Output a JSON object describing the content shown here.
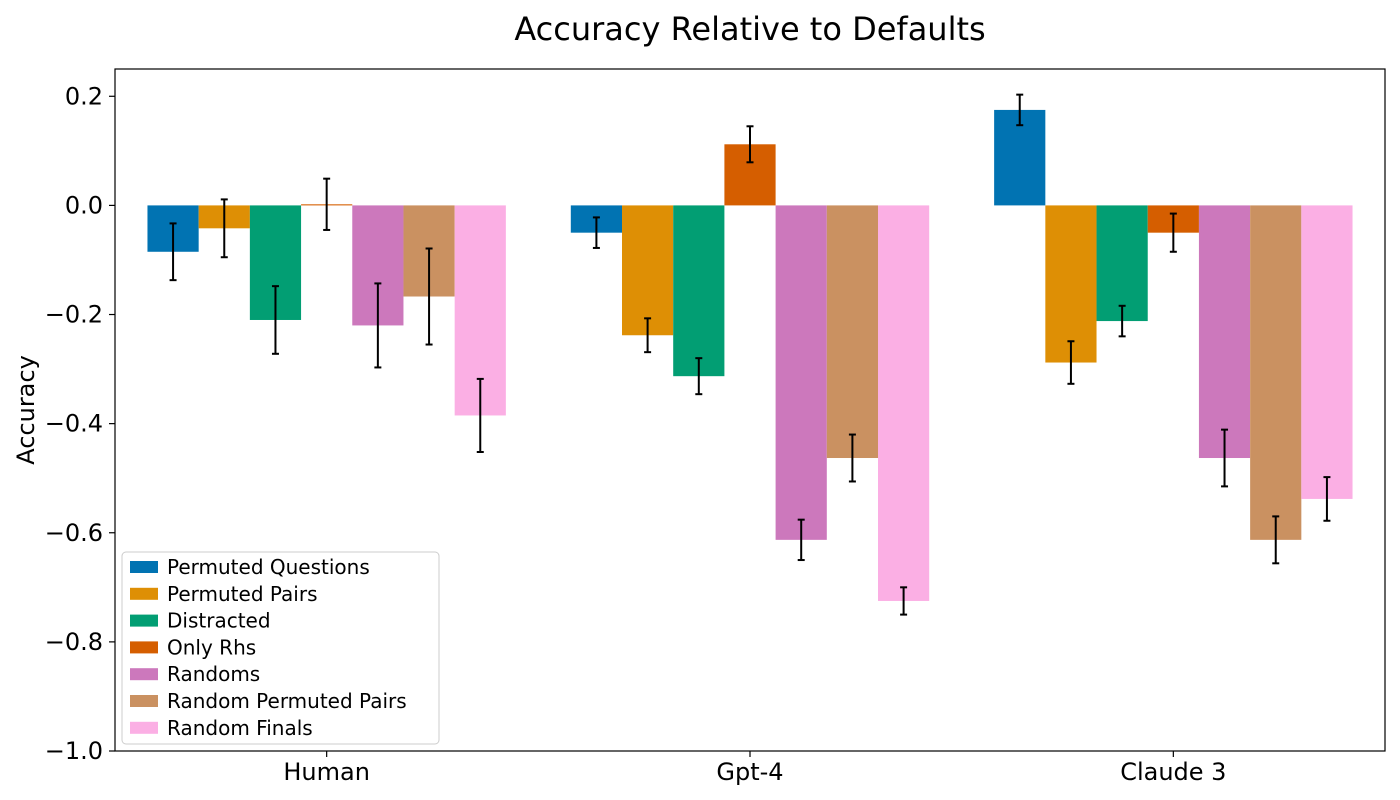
{
  "chart_data": {
    "type": "bar",
    "title": "Accuracy Relative to Defaults",
    "xlabel": "",
    "ylabel": "Accuracy",
    "ylim": [
      -1.0,
      0.25
    ],
    "yticks": [
      0.2,
      0.0,
      -0.2,
      -0.4,
      -0.6,
      -0.8,
      -1.0
    ],
    "ytick_labels": [
      "0.2",
      "0.0",
      "−0.2",
      "−0.4",
      "−0.6",
      "−0.8",
      "−1.0"
    ],
    "categories": [
      "Human",
      "Gpt-4",
      "Claude 3"
    ],
    "grid": false,
    "legend_position": "bottom-left",
    "series": [
      {
        "name": "Permuted Questions",
        "color": "#0173b2",
        "values": [
          -0.085,
          -0.05,
          0.175
        ],
        "errors": [
          0.052,
          0.028,
          0.028
        ]
      },
      {
        "name": "Permuted Pairs",
        "color": "#de8f05",
        "values": [
          -0.042,
          -0.238,
          -0.288
        ],
        "errors": [
          0.053,
          0.031,
          0.039
        ]
      },
      {
        "name": "Distracted",
        "color": "#029e73",
        "values": [
          -0.21,
          -0.313,
          -0.212
        ],
        "errors": [
          0.062,
          0.033,
          0.028
        ]
      },
      {
        "name": "Only Rhs",
        "color": "#d55e00",
        "values": [
          0.002,
          0.112,
          -0.05
        ],
        "errors": [
          0.047,
          0.033,
          0.035
        ]
      },
      {
        "name": "Randoms",
        "color": "#cc78bc",
        "values": [
          -0.22,
          -0.613,
          -0.463
        ],
        "errors": [
          0.077,
          0.037,
          0.052
        ]
      },
      {
        "name": "Random Permuted Pairs",
        "color": "#ca9161",
        "values": [
          -0.167,
          -0.463,
          -0.613
        ],
        "errors": [
          0.088,
          0.043,
          0.043
        ]
      },
      {
        "name": "Random Finals",
        "color": "#fbafe4",
        "values": [
          -0.385,
          -0.725,
          -0.538
        ],
        "errors": [
          0.067,
          0.025,
          0.04
        ]
      }
    ]
  }
}
